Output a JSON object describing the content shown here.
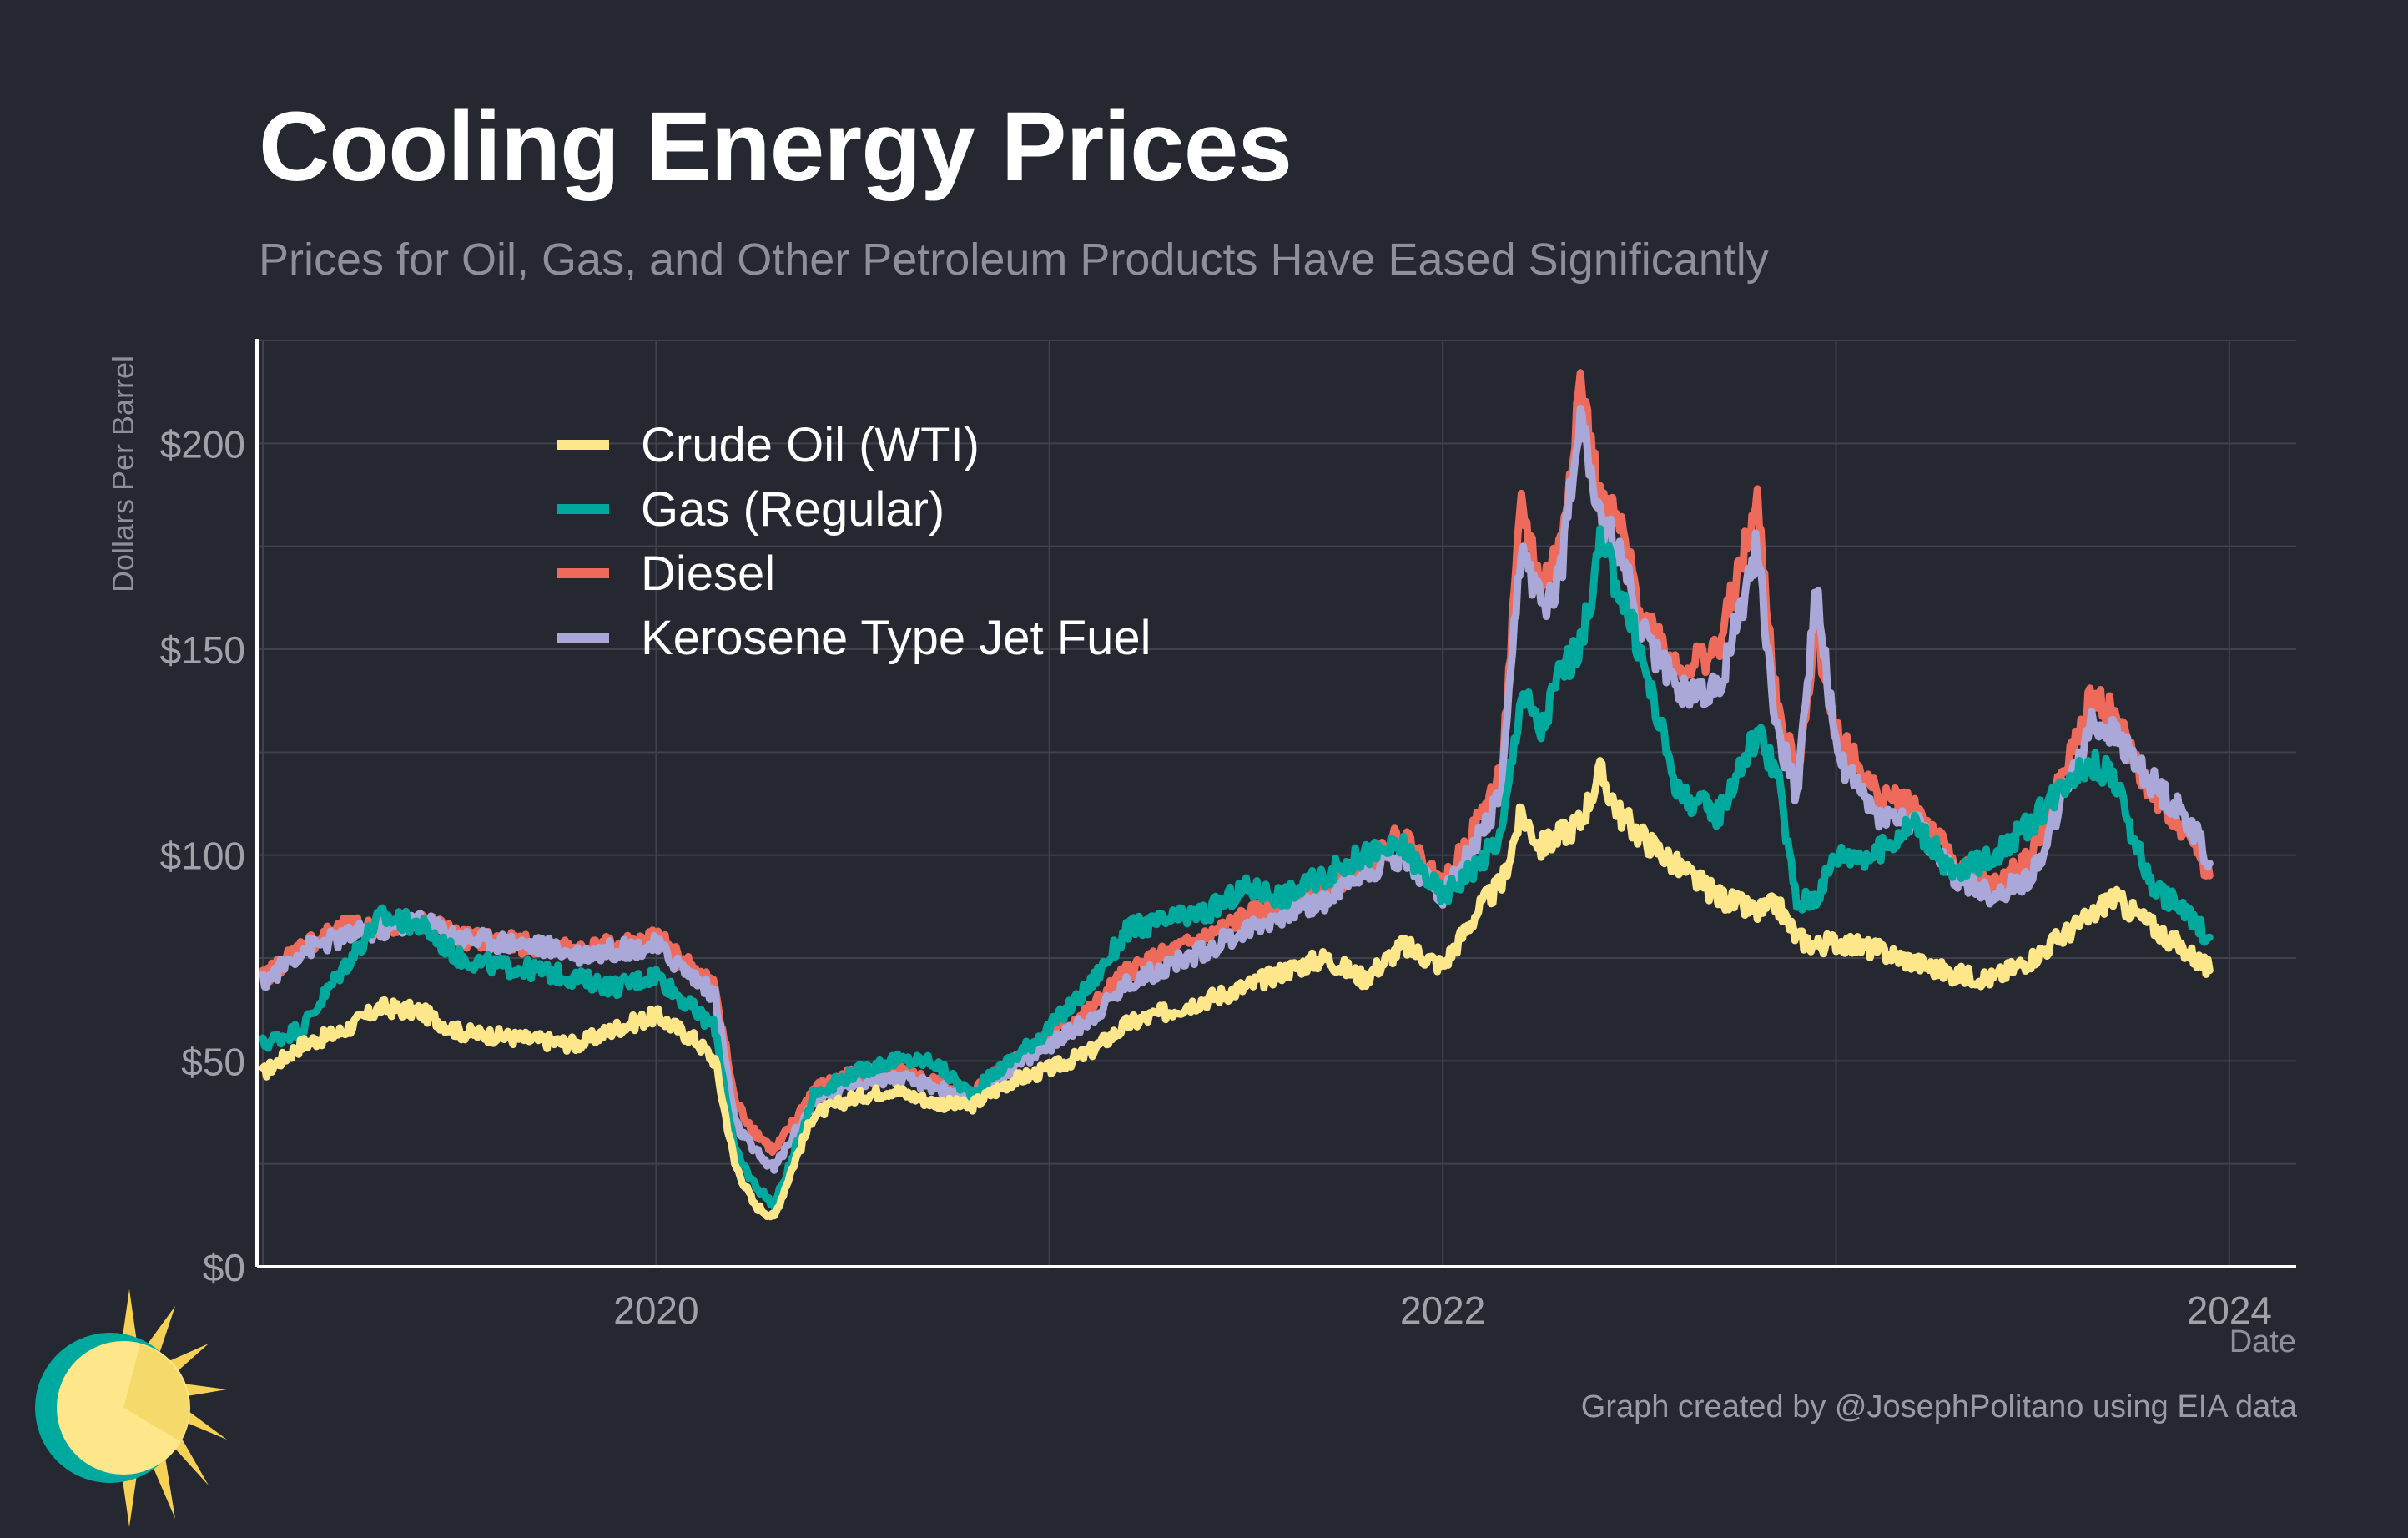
{
  "title": "Cooling Energy Prices",
  "subtitle": "Prices for Oil, Gas, and Other Petroleum Products Have Eased Significantly",
  "credit": "Graph created by @JosephPolitano using EIA data",
  "colors": {
    "background": "#252830",
    "grid": "#3f424b",
    "axis": "#ffffff",
    "tick_text": "#a0a2a8",
    "crude": "#fde78a",
    "gas": "#00a99d",
    "diesel": "#ee6a5b",
    "jet": "#a9a8d8"
  },
  "chart_data": {
    "type": "line",
    "title": "Cooling Energy Prices",
    "subtitle": "Prices for Oil, Gas, and Other Petroleum Products Have Eased Significantly",
    "xlabel": "Date",
    "ylabel": "Dollars Per Barrel",
    "xlim": [
      2018.985,
      2024.17
    ],
    "ylim": [
      0,
      225
    ],
    "x_ticks": [
      2020,
      2022,
      2024
    ],
    "x_tick_labels": [
      "2020",
      "2022",
      "2024"
    ],
    "y_ticks": [
      0,
      50,
      100,
      150,
      200
    ],
    "y_tick_labels": [
      "$0",
      "$50",
      "$100",
      "$150",
      "$200"
    ],
    "grid": true,
    "legend_position": "top-left",
    "x": [
      2019.0,
      2019.1,
      2019.2,
      2019.3,
      2019.4,
      2019.5,
      2019.6,
      2019.7,
      2019.8,
      2019.9,
      2020.0,
      2020.1,
      2020.15,
      2020.2,
      2020.25,
      2020.3,
      2020.35,
      2020.4,
      2020.5,
      2020.6,
      2020.7,
      2020.8,
      2020.9,
      2021.0,
      2021.1,
      2021.2,
      2021.3,
      2021.4,
      2021.5,
      2021.6,
      2021.7,
      2021.8,
      2021.9,
      2022.0,
      2022.1,
      2022.15,
      2022.2,
      2022.25,
      2022.3,
      2022.35,
      2022.4,
      2022.45,
      2022.5,
      2022.6,
      2022.7,
      2022.8,
      2022.85,
      2022.9,
      2022.95,
      2023.0,
      2023.1,
      2023.2,
      2023.3,
      2023.4,
      2023.5,
      2023.6,
      2023.65,
      2023.7,
      2023.8,
      2023.9,
      2023.95
    ],
    "series": [
      {
        "name": "Crude Oil (WTI)",
        "color": "#fde78a",
        "values": [
          47,
          54,
          57,
          63,
          62,
          57,
          56,
          55,
          54,
          58,
          61,
          55,
          50,
          25,
          15,
          12,
          25,
          37,
          41,
          43,
          40,
          39,
          45,
          48,
          52,
          59,
          62,
          65,
          68,
          72,
          75,
          70,
          78,
          73,
          88,
          93,
          110,
          102,
          105,
          108,
          120,
          110,
          105,
          97,
          90,
          86,
          88,
          80,
          78,
          79,
          77,
          74,
          71,
          70,
          75,
          82,
          85,
          90,
          83,
          76,
          72
        ]
      },
      {
        "name": "Gas (Regular)",
        "color": "#00a99d",
        "values": [
          54,
          58,
          72,
          85,
          83,
          75,
          73,
          72,
          70,
          68,
          71,
          62,
          58,
          28,
          20,
          15,
          27,
          42,
          47,
          50,
          50,
          42,
          50,
          58,
          68,
          82,
          84,
          86,
          92,
          90,
          95,
          100,
          102,
          90,
          99,
          105,
          140,
          130,
          145,
          150,
          175,
          165,
          150,
          115,
          110,
          130,
          120,
          88,
          90,
          100,
          100,
          108,
          95,
          100,
          108,
          120,
          122,
          120,
          93,
          85,
          80
        ]
      },
      {
        "name": "Diesel",
        "color": "#ee6a5b",
        "values": [
          70,
          78,
          82,
          83,
          84,
          80,
          79,
          78,
          77,
          78,
          80,
          72,
          68,
          40,
          33,
          28,
          35,
          43,
          47,
          48,
          45,
          42,
          50,
          56,
          62,
          72,
          76,
          80,
          85,
          88,
          91,
          98,
          105,
          92,
          110,
          120,
          185,
          165,
          175,
          215,
          185,
          180,
          160,
          145,
          150,
          185,
          135,
          120,
          155,
          130,
          115,
          112,
          98,
          92,
          100,
          125,
          138,
          135,
          115,
          105,
          95
        ]
      },
      {
        "name": "Kerosene Type Jet Fuel",
        "color": "#a9a8d8",
        "values": [
          69,
          77,
          80,
          82,
          84,
          80,
          79,
          78,
          76,
          77,
          78,
          70,
          66,
          35,
          28,
          24,
          32,
          40,
          45,
          46,
          44,
          41,
          48,
          54,
          60,
          69,
          73,
          77,
          82,
          86,
          89,
          96,
          100,
          90,
          105,
          115,
          175,
          160,
          168,
          210,
          180,
          175,
          155,
          140,
          140,
          175,
          130,
          115,
          165,
          125,
          110,
          108,
          95,
          90,
          95,
          120,
          132,
          130,
          118,
          108,
          98
        ]
      }
    ]
  },
  "legend": {
    "items": [
      {
        "label": "Crude Oil (WTI)",
        "color": "#fde78a"
      },
      {
        "label": "Gas (Regular)",
        "color": "#00a99d"
      },
      {
        "label": "Diesel",
        "color": "#ee6a5b"
      },
      {
        "label": "Kerosene Type Jet Fuel",
        "color": "#a9a8d8"
      }
    ]
  }
}
